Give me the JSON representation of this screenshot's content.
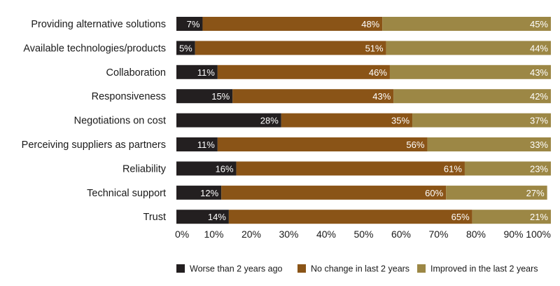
{
  "chart_data": {
    "type": "bar",
    "orientation": "horizontal",
    "stacked": true,
    "categories": [
      "Providing alternative solutions",
      "Available technologies/products",
      "Collaboration",
      "Responsiveness",
      "Negotiations on cost",
      "Perceiving suppliers as partners",
      "Reliability",
      "Technical support",
      "Trust"
    ],
    "series": [
      {
        "name": "Worse than 2 years ago",
        "color": "#231f20",
        "values": [
          7,
          5,
          11,
          15,
          28,
          11,
          16,
          12,
          14
        ]
      },
      {
        "name": "No change in last 2 years",
        "color": "#8a5417",
        "values": [
          48,
          51,
          46,
          43,
          35,
          56,
          61,
          60,
          65
        ]
      },
      {
        "name": "Improved in the last 2 years",
        "color": "#9c8745",
        "values": [
          45,
          44,
          43,
          42,
          37,
          33,
          23,
          27,
          21
        ]
      }
    ],
    "xlim": [
      0,
      100
    ],
    "xticks": [
      "0%",
      "10%",
      "20%",
      "30%",
      "40%",
      "50%",
      "60%",
      "70%",
      "80%",
      "90%",
      "100%"
    ],
    "value_suffix": "%",
    "title": "",
    "xlabel": "",
    "ylabel": "",
    "legend_position": "bottom",
    "grid": false
  }
}
